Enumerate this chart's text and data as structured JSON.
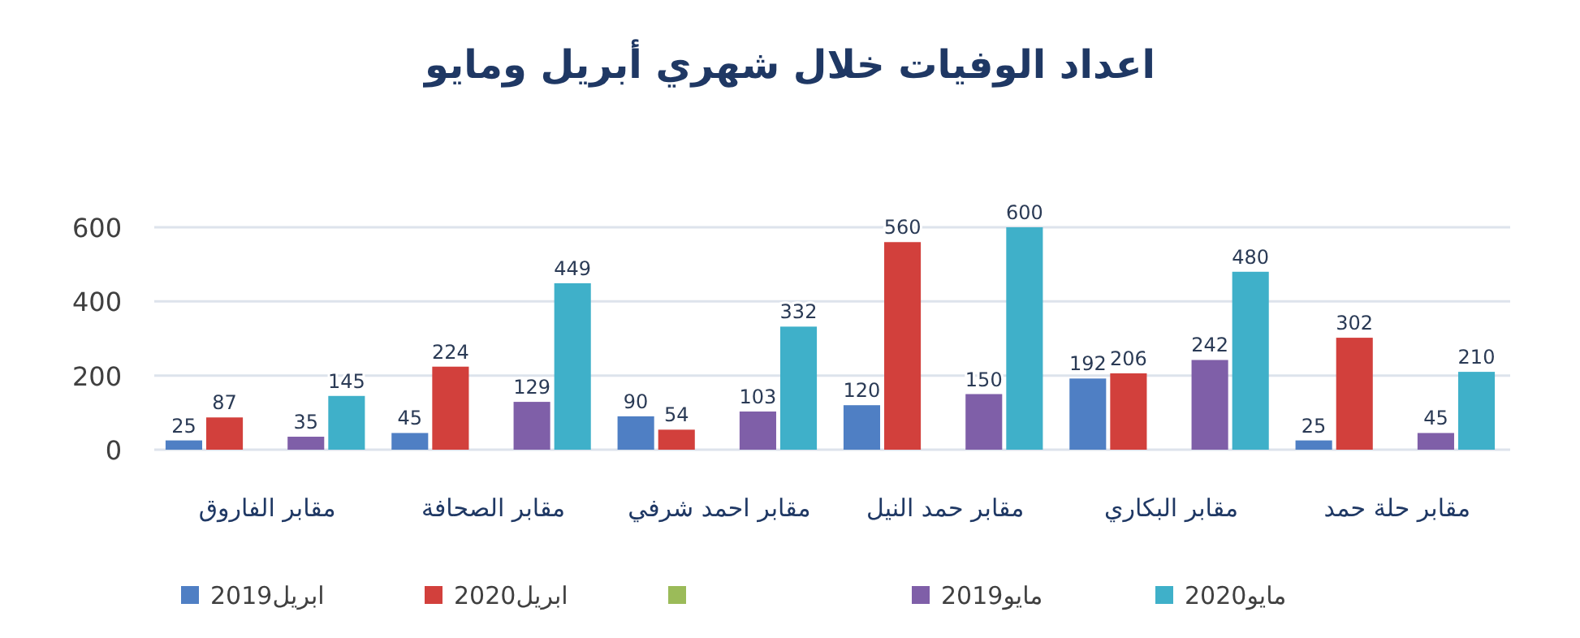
{
  "chart_data": {
    "type": "bar",
    "title": "اعداد الوفيات خلال شهري أبريل ومايو",
    "categories": [
      "مقابر الفاروق",
      "مقابر الصحافة",
      "مقابر احمد شرفي",
      "مقابر حمد النيل",
      "مقابر البكاري",
      "مقابر حلة حمد"
    ],
    "series": [
      {
        "name": "ابريل2019",
        "color": "#4f7fc4",
        "values": [
          25,
          45,
          90,
          120,
          192,
          25
        ]
      },
      {
        "name": "ابريل2020",
        "color": "#d2403c",
        "values": [
          87,
          224,
          54,
          560,
          206,
          302
        ]
      },
      {
        "color": "#9bbb59",
        "values": [
          null,
          null,
          null,
          null,
          null,
          null
        ]
      },
      {
        "name": "مايو2019",
        "color": "#7f5fa8",
        "values": [
          35,
          129,
          103,
          150,
          242,
          45
        ]
      },
      {
        "name": "مايو2020",
        "color": "#3fb0c9",
        "values": [
          145,
          449,
          332,
          600,
          480,
          210
        ]
      }
    ],
    "ylim": [
      0,
      600
    ],
    "yticks": [
      0,
      200,
      400,
      600
    ],
    "grid": "y",
    "legend": "bottom",
    "data_labels": true
  }
}
